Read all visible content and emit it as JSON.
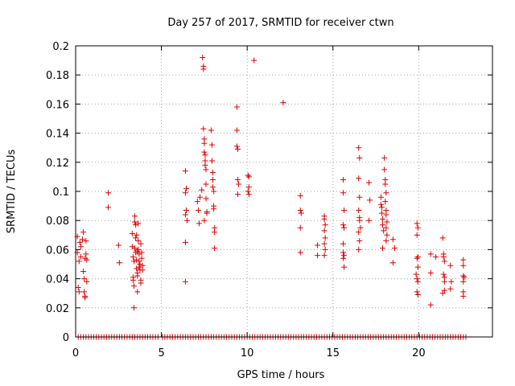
{
  "chart_data": {
    "type": "scatter",
    "title": "Day 257 of 2017, SRMTID for receiver ctwn",
    "xlabel": "GPS time / hours",
    "ylabel": "SRMTID / TECUs",
    "xlim": [
      0,
      24.3
    ],
    "ylim": [
      0,
      0.2
    ],
    "xticks": [
      0,
      5,
      10,
      15,
      20
    ],
    "xtick_labels": [
      "0",
      "5",
      "10",
      "15",
      "20"
    ],
    "yticks": [
      0,
      0.02,
      0.04,
      0.06,
      0.08,
      0.1,
      0.12,
      0.14,
      0.16,
      0.18,
      0.2
    ],
    "ytick_labels": [
      "0",
      "0.02",
      "0.04",
      "0.06",
      "0.08",
      "0.1",
      "0.12",
      "0.14",
      "0.16",
      "0.18",
      "0.2"
    ],
    "grid": true,
    "marker": "plus",
    "color": "#e00000",
    "series": [
      {
        "name": "SRMTID",
        "points": [
          [
            0.1,
            0.069
          ],
          [
            0.1,
            0.058
          ],
          [
            0.15,
            0.034
          ],
          [
            0.2,
            0.031
          ],
          [
            0.2,
            0.052
          ],
          [
            0.25,
            0.065
          ],
          [
            0.3,
            0.062
          ],
          [
            0.3,
            0.055
          ],
          [
            0.4,
            0.067
          ],
          [
            0.45,
            0.072
          ],
          [
            0.45,
            0.045
          ],
          [
            0.5,
            0.04
          ],
          [
            0.5,
            0.031
          ],
          [
            0.55,
            0.028
          ],
          [
            0.55,
            0.054
          ],
          [
            0.6,
            0.057
          ],
          [
            0.6,
            0.066
          ],
          [
            0.65,
            0.053
          ],
          [
            0.65,
            0.038
          ],
          [
            0.55,
            0.027
          ],
          [
            1.9,
            0.099
          ],
          [
            1.9,
            0.089
          ],
          [
            2.5,
            0.063
          ],
          [
            2.55,
            0.051
          ],
          [
            3.3,
            0.071
          ],
          [
            3.3,
            0.062
          ],
          [
            3.35,
            0.055
          ],
          [
            3.35,
            0.041
          ],
          [
            3.35,
            0.039
          ],
          [
            3.4,
            0.035
          ],
          [
            3.4,
            0.02
          ],
          [
            3.45,
            0.083
          ],
          [
            3.45,
            0.079
          ],
          [
            3.5,
            0.077
          ],
          [
            3.5,
            0.068
          ],
          [
            3.5,
            0.058
          ],
          [
            3.55,
            0.053
          ],
          [
            3.55,
            0.047
          ],
          [
            3.6,
            0.044
          ],
          [
            3.6,
            0.042
          ],
          [
            3.6,
            0.031
          ],
          [
            3.65,
            0.078
          ],
          [
            3.65,
            0.066
          ],
          [
            3.65,
            0.06
          ],
          [
            3.7,
            0.057
          ],
          [
            3.7,
            0.052
          ],
          [
            3.75,
            0.05
          ],
          [
            3.75,
            0.046
          ],
          [
            3.8,
            0.039
          ],
          [
            3.8,
            0.037
          ],
          [
            3.8,
            0.064
          ],
          [
            3.85,
            0.058
          ],
          [
            3.85,
            0.054
          ],
          [
            3.9,
            0.049
          ],
          [
            3.9,
            0.046
          ],
          [
            3.4,
            0.052
          ],
          [
            3.45,
            0.061
          ],
          [
            3.55,
            0.07
          ],
          [
            3.6,
            0.059
          ],
          [
            3.7,
            0.048
          ],
          [
            6.4,
            0.114
          ],
          [
            6.4,
            0.099
          ],
          [
            6.45,
            0.102
          ],
          [
            6.45,
            0.087
          ],
          [
            6.4,
            0.084
          ],
          [
            6.5,
            0.08
          ],
          [
            6.4,
            0.065
          ],
          [
            6.4,
            0.038
          ],
          [
            7.1,
            0.093
          ],
          [
            7.15,
            0.087
          ],
          [
            7.2,
            0.078
          ],
          [
            7.25,
            0.096
          ],
          [
            7.35,
            0.101
          ],
          [
            7.4,
            0.192
          ],
          [
            7.45,
            0.186
          ],
          [
            7.45,
            0.184
          ],
          [
            7.45,
            0.143
          ],
          [
            7.5,
            0.136
          ],
          [
            7.5,
            0.133
          ],
          [
            7.5,
            0.127
          ],
          [
            7.55,
            0.125
          ],
          [
            7.55,
            0.121
          ],
          [
            7.55,
            0.118
          ],
          [
            7.6,
            0.115
          ],
          [
            7.6,
            0.105
          ],
          [
            7.6,
            0.095
          ],
          [
            7.65,
            0.086
          ],
          [
            7.65,
            0.085
          ],
          [
            7.5,
            0.08
          ],
          [
            7.9,
            0.142
          ],
          [
            7.95,
            0.132
          ],
          [
            7.95,
            0.121
          ],
          [
            8.0,
            0.113
          ],
          [
            8.0,
            0.108
          ],
          [
            8.0,
            0.103
          ],
          [
            8.05,
            0.1
          ],
          [
            8.05,
            0.09
          ],
          [
            8.05,
            0.088
          ],
          [
            8.1,
            0.075
          ],
          [
            8.1,
            0.072
          ],
          [
            8.1,
            0.061
          ],
          [
            9.4,
            0.158
          ],
          [
            9.4,
            0.142
          ],
          [
            9.4,
            0.131
          ],
          [
            9.45,
            0.129
          ],
          [
            9.45,
            0.108
          ],
          [
            9.5,
            0.105
          ],
          [
            9.45,
            0.098
          ],
          [
            10.05,
            0.111
          ],
          [
            10.1,
            0.11
          ],
          [
            10.1,
            0.103
          ],
          [
            10.05,
            0.1
          ],
          [
            10.1,
            0.098
          ],
          [
            10.4,
            0.19
          ],
          [
            12.1,
            0.161
          ],
          [
            13.1,
            0.097
          ],
          [
            13.1,
            0.087
          ],
          [
            13.15,
            0.085
          ],
          [
            13.1,
            0.075
          ],
          [
            13.1,
            0.058
          ],
          [
            14.1,
            0.063
          ],
          [
            14.1,
            0.056
          ],
          [
            14.5,
            0.083
          ],
          [
            14.5,
            0.081
          ],
          [
            14.55,
            0.077
          ],
          [
            14.5,
            0.073
          ],
          [
            14.55,
            0.068
          ],
          [
            14.5,
            0.064
          ],
          [
            14.55,
            0.06
          ],
          [
            14.5,
            0.056
          ],
          [
            15.6,
            0.108
          ],
          [
            15.6,
            0.099
          ],
          [
            15.65,
            0.087
          ],
          [
            15.6,
            0.077
          ],
          [
            15.65,
            0.075
          ],
          [
            15.6,
            0.064
          ],
          [
            15.6,
            0.058
          ],
          [
            15.65,
            0.056
          ],
          [
            15.6,
            0.054
          ],
          [
            15.65,
            0.048
          ],
          [
            16.5,
            0.13
          ],
          [
            16.55,
            0.123
          ],
          [
            16.5,
            0.109
          ],
          [
            16.55,
            0.096
          ],
          [
            16.5,
            0.087
          ],
          [
            16.55,
            0.082
          ],
          [
            16.55,
            0.08
          ],
          [
            16.6,
            0.075
          ],
          [
            16.5,
            0.072
          ],
          [
            16.55,
            0.066
          ],
          [
            16.5,
            0.06
          ],
          [
            17.1,
            0.106
          ],
          [
            17.15,
            0.094
          ],
          [
            17.1,
            0.08
          ],
          [
            17.8,
            0.096
          ],
          [
            17.8,
            0.091
          ],
          [
            17.85,
            0.089
          ],
          [
            17.85,
            0.085
          ],
          [
            17.9,
            0.081
          ],
          [
            17.9,
            0.077
          ],
          [
            17.95,
            0.073
          ],
          [
            18.0,
            0.123
          ],
          [
            18.0,
            0.115
          ],
          [
            18.05,
            0.108
          ],
          [
            18.05,
            0.105
          ],
          [
            18.1,
            0.099
          ],
          [
            18.05,
            0.093
          ],
          [
            18.1,
            0.087
          ],
          [
            18.1,
            0.084
          ],
          [
            18.15,
            0.079
          ],
          [
            18.1,
            0.075
          ],
          [
            18.15,
            0.07
          ],
          [
            18.1,
            0.066
          ],
          [
            17.9,
            0.061
          ],
          [
            18.5,
            0.067
          ],
          [
            18.6,
            0.061
          ],
          [
            18.5,
            0.051
          ],
          [
            19.9,
            0.078
          ],
          [
            19.95,
            0.075
          ],
          [
            19.9,
            0.07
          ],
          [
            19.95,
            0.055
          ],
          [
            19.9,
            0.054
          ],
          [
            19.95,
            0.048
          ],
          [
            19.85,
            0.043
          ],
          [
            19.9,
            0.04
          ],
          [
            19.95,
            0.038
          ],
          [
            19.9,
            0.031
          ],
          [
            19.95,
            0.029
          ],
          [
            20.7,
            0.057
          ],
          [
            20.7,
            0.044
          ],
          [
            20.7,
            0.022
          ],
          [
            21.4,
            0.068
          ],
          [
            21.45,
            0.057
          ],
          [
            21.45,
            0.055
          ],
          [
            21.5,
            0.052
          ],
          [
            21.45,
            0.043
          ],
          [
            21.5,
            0.041
          ],
          [
            21.5,
            0.038
          ],
          [
            21.5,
            0.032
          ],
          [
            21.4,
            0.03
          ],
          [
            21.85,
            0.049
          ],
          [
            21.9,
            0.038
          ],
          [
            21.85,
            0.033
          ],
          [
            22.6,
            0.053
          ],
          [
            22.6,
            0.049
          ],
          [
            22.6,
            0.042
          ],
          [
            22.65,
            0.041
          ],
          [
            22.6,
            0.038
          ],
          [
            22.6,
            0.031
          ],
          [
            22.6,
            0.028
          ],
          [
            21.0,
            0.055
          ]
        ],
        "zero_points_x": [
          0.15,
          0.3,
          0.45,
          0.6,
          0.75,
          0.9,
          1.05,
          1.2,
          1.35,
          1.5,
          1.65,
          1.8,
          1.95,
          2.1,
          2.25,
          2.4,
          2.55,
          2.7,
          2.85,
          3.0,
          3.15,
          3.3,
          3.45,
          3.6,
          3.75,
          3.9,
          4.05,
          4.2,
          4.35,
          4.5,
          4.65,
          4.8,
          5.05,
          5.2,
          5.35,
          5.5,
          5.65,
          5.8,
          5.95,
          6.1,
          6.25,
          6.4,
          6.55,
          6.7,
          6.85,
          7.0,
          7.15,
          7.3,
          7.45,
          7.6,
          7.75,
          7.9,
          8.05,
          8.2,
          8.35,
          8.5,
          8.65,
          8.8,
          8.95,
          9.1,
          9.25,
          9.4,
          9.55,
          9.7,
          9.85,
          10.0,
          10.15,
          10.3,
          10.45,
          10.6,
          10.75,
          10.9,
          11.05,
          11.2,
          11.35,
          11.5,
          11.65,
          11.8,
          11.95,
          12.1,
          12.25,
          12.4,
          12.55,
          12.7,
          12.85,
          13.0,
          13.15,
          13.3,
          13.45,
          13.6,
          13.75,
          13.9,
          14.05,
          14.2,
          14.35,
          14.5,
          14.65,
          14.8,
          14.95,
          15.1,
          15.25,
          15.4,
          15.55,
          15.7,
          15.85,
          16.0,
          16.15,
          16.3,
          16.45,
          16.6,
          16.75,
          16.9,
          17.05,
          17.2,
          17.35,
          17.5,
          17.65,
          17.8,
          17.95,
          18.1,
          18.25,
          18.4,
          18.55,
          18.7,
          18.85,
          19.0,
          19.15,
          19.3,
          19.45,
          19.6,
          19.75,
          19.9,
          20.05,
          20.2,
          20.35,
          20.5,
          20.65,
          20.8,
          20.95,
          21.1,
          21.25,
          21.4,
          21.55,
          21.7,
          21.85,
          22.0,
          22.15,
          22.3,
          22.45,
          22.6,
          22.75
        ]
      }
    ]
  }
}
